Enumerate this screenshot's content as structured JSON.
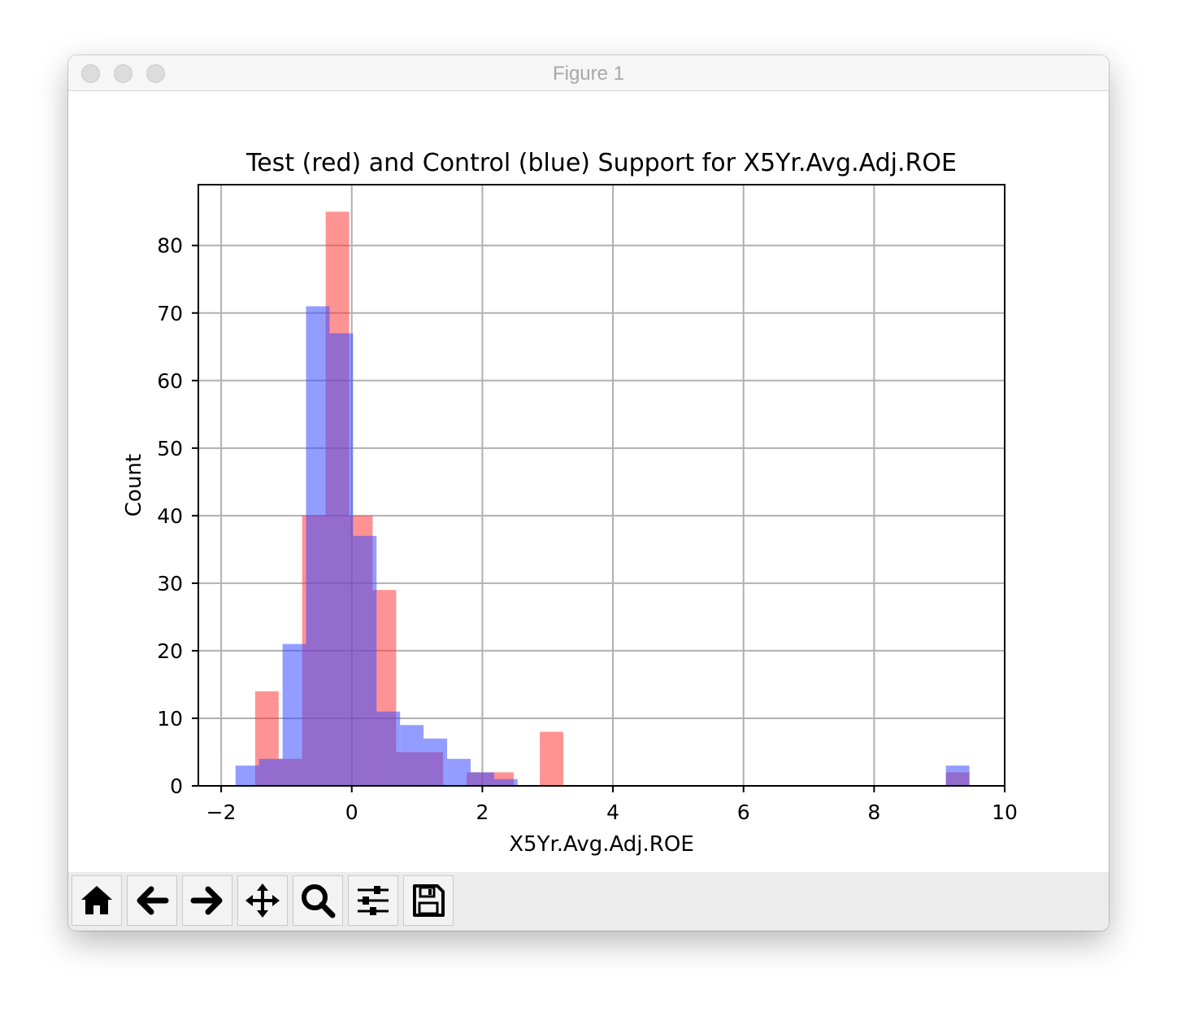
{
  "window": {
    "title": "Figure 1"
  },
  "toolbar": {
    "buttons": [
      {
        "name": "home-button",
        "icon": "home-icon"
      },
      {
        "name": "back-button",
        "icon": "arrow-left-icon"
      },
      {
        "name": "forward-button",
        "icon": "arrow-right-icon"
      },
      {
        "name": "pan-button",
        "icon": "move-icon"
      },
      {
        "name": "zoom-button",
        "icon": "magnifier-icon"
      },
      {
        "name": "configure-subplots-button",
        "icon": "sliders-icon"
      },
      {
        "name": "save-button",
        "icon": "floppy-disk-icon"
      }
    ]
  },
  "chart_data": {
    "type": "bar",
    "title": "Test (red) and Control (blue) Support for X5Yr.Avg.Adj.ROE",
    "xlabel": "X5Yr.Avg.Adj.ROE",
    "ylabel": "Count",
    "xlim": [
      -2.35,
      10
    ],
    "ylim": [
      0,
      89
    ],
    "xticks": [
      -2,
      0,
      2,
      4,
      6,
      8,
      10
    ],
    "xtick_labels": [
      "−2",
      "0",
      "2",
      "4",
      "6",
      "8",
      "10"
    ],
    "yticks": [
      0,
      10,
      20,
      30,
      40,
      50,
      60,
      70,
      80
    ],
    "grid": true,
    "colors": {
      "red": "#ff3a3a",
      "blue": "#3a4dff",
      "alpha": 0.55
    },
    "series": [
      {
        "color": "red",
        "bins": [
          {
            "x0": -1.48,
            "x1": -1.12,
            "count": 14
          },
          {
            "x0": -1.12,
            "x1": -0.76,
            "count": 4
          },
          {
            "x0": -0.76,
            "x1": -0.4,
            "count": 40
          },
          {
            "x0": -0.4,
            "x1": -0.04,
            "count": 85
          },
          {
            "x0": -0.04,
            "x1": 0.32,
            "count": 40
          },
          {
            "x0": 0.32,
            "x1": 0.68,
            "count": 29
          },
          {
            "x0": 0.68,
            "x1": 1.04,
            "count": 5
          },
          {
            "x0": 1.04,
            "x1": 1.4,
            "count": 5
          },
          {
            "x0": 1.4,
            "x1": 1.76,
            "count": 0
          },
          {
            "x0": 1.76,
            "x1": 2.12,
            "count": 2
          },
          {
            "x0": 2.12,
            "x1": 2.48,
            "count": 2
          },
          {
            "x0": 2.88,
            "x1": 3.24,
            "count": 8
          },
          {
            "x0": 9.1,
            "x1": 9.46,
            "count": 2
          }
        ]
      },
      {
        "color": "blue",
        "bins": [
          {
            "x0": -1.78,
            "x1": -1.42,
            "count": 3
          },
          {
            "x0": -1.42,
            "x1": -1.06,
            "count": 4
          },
          {
            "x0": -1.06,
            "x1": -0.7,
            "count": 21
          },
          {
            "x0": -0.7,
            "x1": -0.34,
            "count": 71
          },
          {
            "x0": -0.34,
            "x1": 0.02,
            "count": 67
          },
          {
            "x0": 0.02,
            "x1": 0.38,
            "count": 37
          },
          {
            "x0": 0.38,
            "x1": 0.74,
            "count": 11
          },
          {
            "x0": 0.74,
            "x1": 1.1,
            "count": 9
          },
          {
            "x0": 1.1,
            "x1": 1.46,
            "count": 7
          },
          {
            "x0": 1.46,
            "x1": 1.82,
            "count": 4
          },
          {
            "x0": 1.82,
            "x1": 2.18,
            "count": 2
          },
          {
            "x0": 2.18,
            "x1": 2.54,
            "count": 1
          },
          {
            "x0": 9.1,
            "x1": 9.46,
            "count": 3
          }
        ]
      }
    ]
  }
}
